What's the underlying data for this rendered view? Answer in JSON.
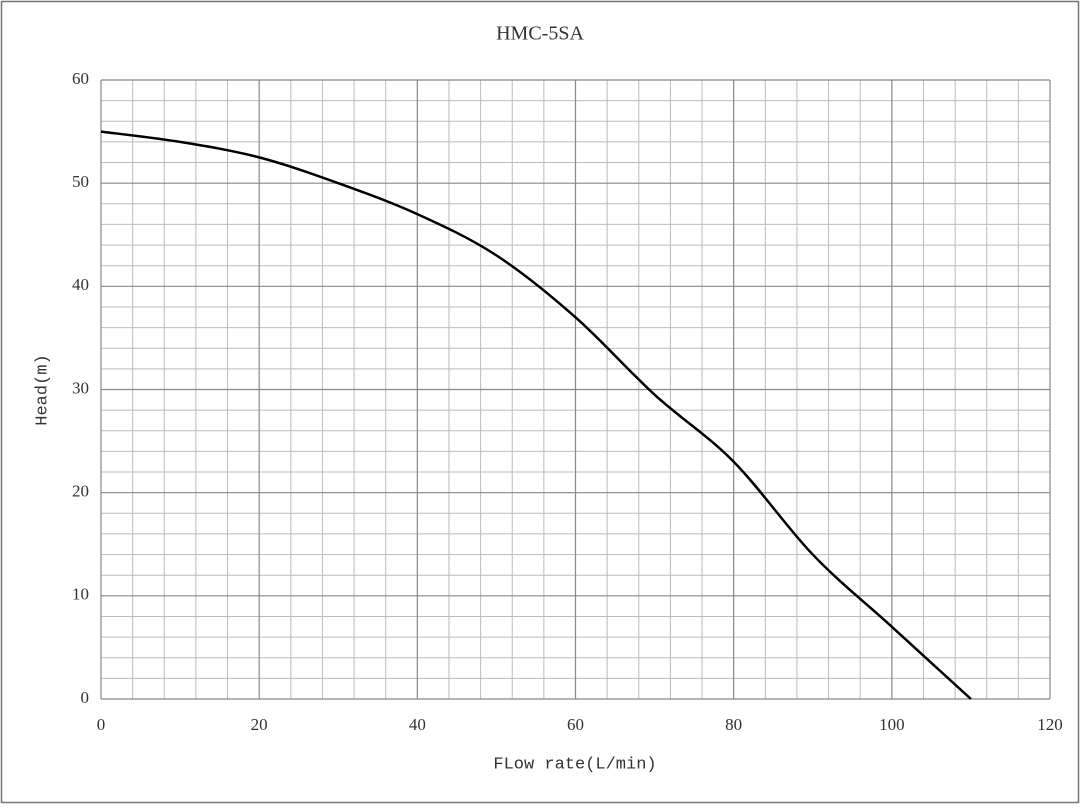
{
  "chart_data": {
    "type": "line",
    "title": "HMC-5SA",
    "x_label": "FLow rate(L/min)",
    "y_label": "Head(m)",
    "x": [
      0,
      10,
      20,
      30,
      40,
      50,
      60,
      70,
      80,
      90,
      100,
      110
    ],
    "values": [
      55,
      54,
      52.5,
      50,
      47,
      43,
      37,
      29.5,
      23,
      14,
      7,
      0
    ],
    "color": "#000000",
    "xlim": [
      0,
      120
    ],
    "ylim": [
      0,
      60
    ],
    "xticks": [
      0,
      20,
      40,
      60,
      80,
      100,
      120
    ],
    "yticks": [
      0,
      10,
      20,
      30,
      40,
      50,
      60
    ],
    "minor_xticks": [
      4,
      8,
      12,
      16,
      24,
      28,
      32,
      36,
      44,
      48,
      52,
      56,
      64,
      68,
      72,
      76,
      84,
      88,
      92,
      96,
      104,
      108,
      112,
      116
    ],
    "minor_yticks": [
      2,
      4,
      6,
      8,
      12,
      14,
      16,
      18,
      22,
      24,
      26,
      28,
      32,
      34,
      36,
      38,
      42,
      44,
      46,
      48,
      52,
      54,
      56,
      58
    ],
    "grid": true
  }
}
